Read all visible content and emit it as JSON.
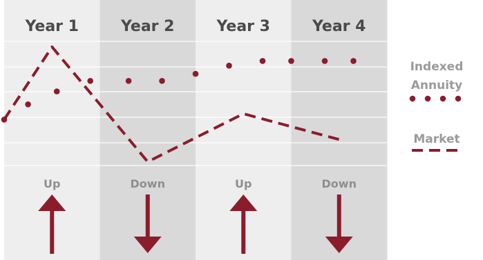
{
  "colors": {
    "accent": "#8b1c2c",
    "panel_light": "#eeeeee",
    "panel_dark": "#d9d9d9",
    "grid": "#ffffff"
  },
  "chart_data": {
    "type": "line",
    "categories": [
      "Year 1",
      "Year 2",
      "Year 3",
      "Year 4"
    ],
    "row_labels": [
      "Up",
      "Down",
      "Up",
      "Down"
    ],
    "direction_icons": [
      "arrow-up-icon",
      "arrow-down-icon",
      "arrow-up-icon",
      "arrow-down-icon"
    ],
    "x_range": [
      0,
      4
    ],
    "y_range": [
      0,
      10
    ],
    "grid": true,
    "legend_position": "right",
    "series": [
      {
        "name": "Indexed Annuity",
        "name_lines": [
          "Indexed",
          "Annuity"
        ],
        "style": "dotted",
        "points": [
          [
            0,
            3.8
          ],
          [
            0.25,
            5.1
          ],
          [
            0.55,
            6.2
          ],
          [
            0.9,
            7.1
          ],
          [
            1.3,
            7.1
          ],
          [
            1.65,
            7.1
          ],
          [
            2.0,
            7.7
          ],
          [
            2.35,
            8.4
          ],
          [
            2.7,
            8.8
          ],
          [
            3.0,
            8.8
          ],
          [
            3.35,
            8.8
          ],
          [
            3.65,
            8.8
          ]
        ]
      },
      {
        "name": "Market",
        "style": "dashed",
        "points": [
          [
            0,
            3.8
          ],
          [
            0.5,
            10.0
          ],
          [
            1.5,
            0.2
          ],
          [
            2.5,
            4.3
          ],
          [
            3.5,
            2.1
          ]
        ]
      }
    ]
  }
}
